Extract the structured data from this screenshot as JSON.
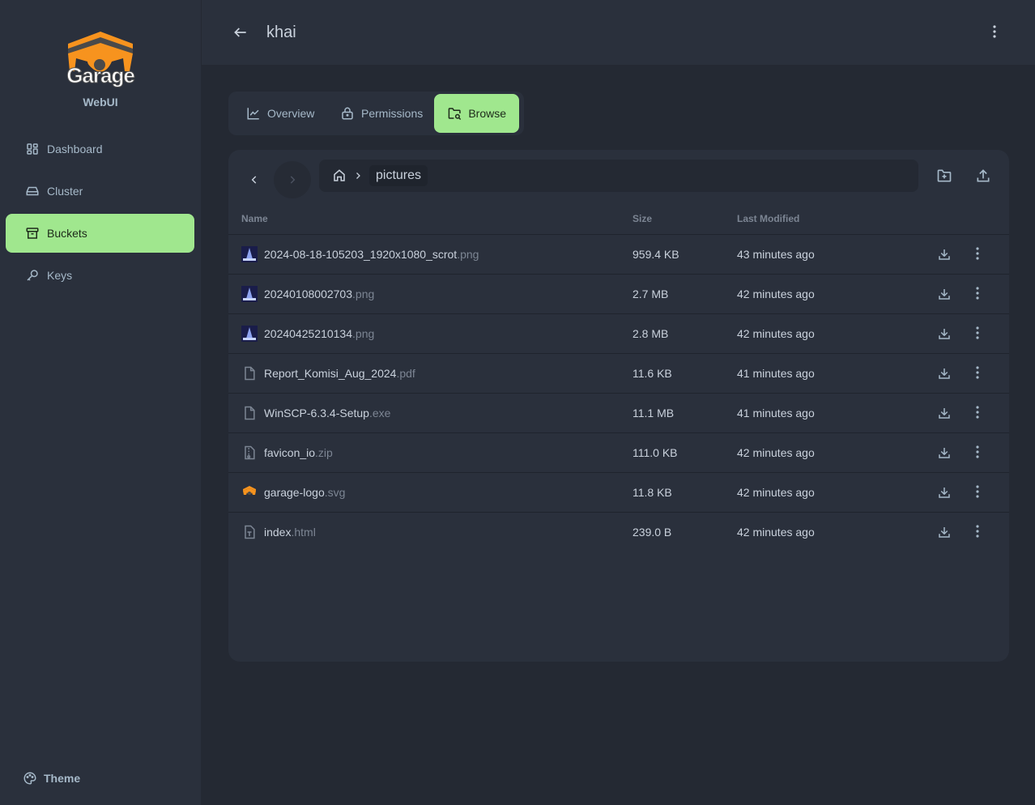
{
  "sidebar": {
    "brand": "Garage",
    "subtitle": "WebUI",
    "items": [
      {
        "label": "Dashboard",
        "icon": "grid-icon"
      },
      {
        "label": "Cluster",
        "icon": "hard-drive-icon"
      },
      {
        "label": "Buckets",
        "icon": "archive-icon",
        "active": true
      },
      {
        "label": "Keys",
        "icon": "key-icon"
      }
    ],
    "theme_label": "Theme"
  },
  "header": {
    "title": "khai"
  },
  "tabs": [
    {
      "label": "Overview"
    },
    {
      "label": "Permissions"
    },
    {
      "label": "Browse",
      "active": true
    }
  ],
  "browser": {
    "breadcrumb": [
      "pictures"
    ],
    "columns": {
      "name": "Name",
      "size": "Size",
      "modified": "Last Modified"
    },
    "files": [
      {
        "base": "2024-08-18-105203_1920x1080_scrot",
        "ext": ".png",
        "size": "959.4 KB",
        "modified": "43 minutes ago",
        "type": "image"
      },
      {
        "base": "20240108002703",
        "ext": ".png",
        "size": "2.7 MB",
        "modified": "42 minutes ago",
        "type": "image"
      },
      {
        "base": "20240425210134",
        "ext": ".png",
        "size": "2.8 MB",
        "modified": "42 minutes ago",
        "type": "image"
      },
      {
        "base": "Report_Komisi_Aug_2024",
        "ext": ".pdf",
        "size": "11.6 KB",
        "modified": "41 minutes ago",
        "type": "file"
      },
      {
        "base": "WinSCP-6.3.4-Setup",
        "ext": ".exe",
        "size": "11.1 MB",
        "modified": "41 minutes ago",
        "type": "file"
      },
      {
        "base": "favicon_io",
        "ext": ".zip",
        "size": "111.0 KB",
        "modified": "42 minutes ago",
        "type": "zip"
      },
      {
        "base": "garage-logo",
        "ext": ".svg",
        "size": "11.8 KB",
        "modified": "42 minutes ago",
        "type": "logo"
      },
      {
        "base": "index",
        "ext": ".html",
        "size": "239.0 B",
        "modified": "42 minutes ago",
        "type": "text"
      }
    ]
  },
  "colors": {
    "accent": "#a0e78e",
    "sidebar": "#2a303c",
    "background": "#242933",
    "brand": "#f7931e"
  }
}
